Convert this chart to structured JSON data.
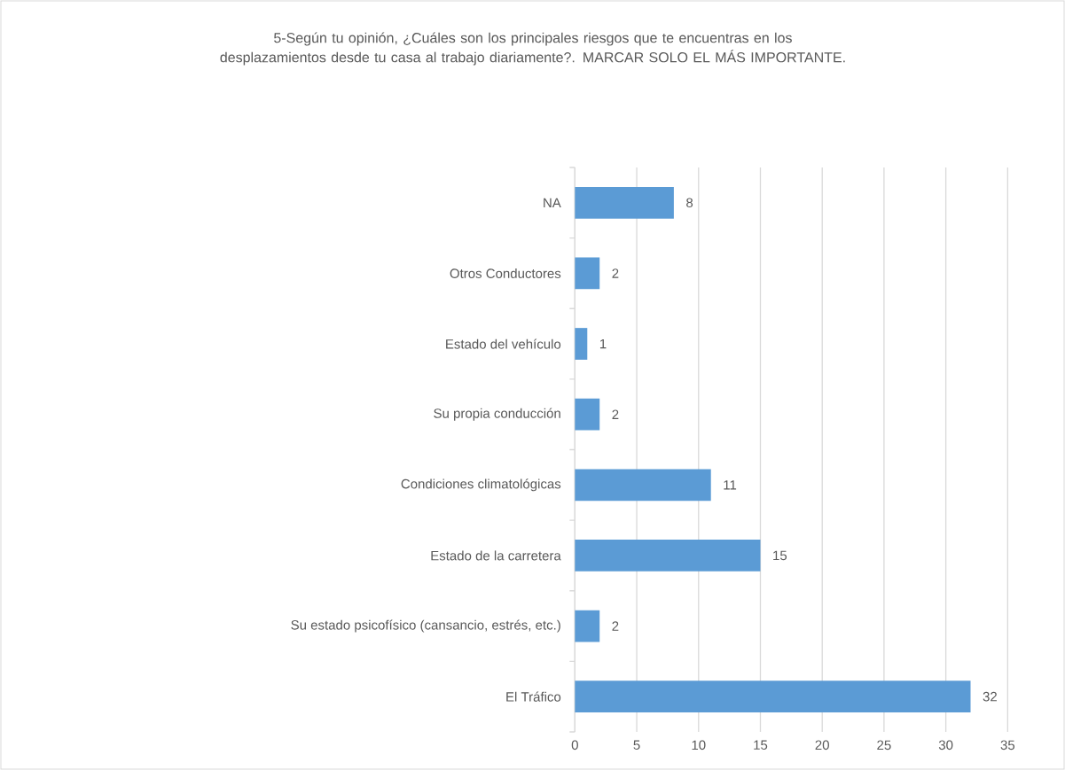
{
  "chart_data": {
    "type": "bar",
    "orientation": "horizontal",
    "title": "5-Según tu opinión, ¿Cuáles son los principales riesgos que te encuentras en los desplazamientos desde tu casa al trabajo diariamente?. MARCAR SOLO EL MÁS IMPORTANTE.",
    "categories": [
      "NA",
      "Otros Conductores",
      "Estado del vehículo",
      "Su propia conducción",
      "Condiciones climatológicas",
      "Estado de la carretera",
      "Su estado psicofísico (cansancio, estrés, etc.)",
      "El Tráfico"
    ],
    "values": [
      8,
      2,
      1,
      2,
      11,
      15,
      2,
      32
    ],
    "color": "#5b9bd5",
    "xlim": [
      0,
      35
    ],
    "xticks": [
      0,
      5,
      10,
      15,
      20,
      25,
      30,
      35
    ],
    "grid": "x",
    "data_labels": true
  }
}
